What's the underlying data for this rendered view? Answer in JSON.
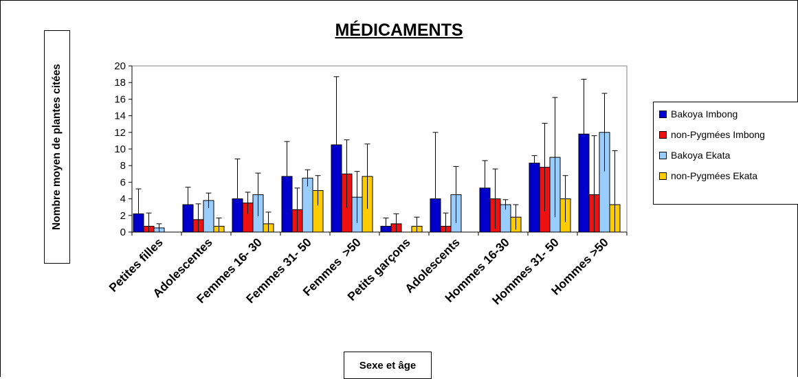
{
  "chart_data": {
    "type": "bar",
    "title": "MÉDICAMENTS",
    "xlabel": "Sexe et âge",
    "ylabel": "Nombre moyen de plantes citées",
    "ylim": [
      0,
      20
    ],
    "yticks": [
      "0",
      "2",
      "4",
      "6",
      "8",
      "10",
      "12",
      "14",
      "16",
      "18",
      "20"
    ],
    "categories": [
      "Petites filles",
      "Adolescentes",
      "Femmes 16- 30",
      "Femmes 31- 50",
      "Femmes  >50",
      "Petits garçons",
      "Adolescents",
      "Hommes 16-30",
      "Hommes 31- 50",
      "Hommes >50"
    ],
    "series": [
      {
        "name": "Bakoya Imbong",
        "color": "#0000cc",
        "values": [
          2.2,
          3.3,
          4.0,
          6.7,
          10.5,
          0.7,
          4.0,
          5.3,
          8.3,
          11.8
        ],
        "error": [
          3.0,
          2.1,
          4.8,
          4.2,
          8.2,
          1.0,
          8.0,
          3.3,
          0.9,
          6.6
        ]
      },
      {
        "name": "non-Pygmées Imbong",
        "color": "#ee1111",
        "values": [
          0.7,
          1.5,
          3.5,
          2.7,
          7.0,
          1.0,
          0.7,
          4.0,
          7.8,
          4.5
        ],
        "error": [
          1.6,
          1.9,
          1.3,
          2.6,
          4.1,
          1.2,
          1.6,
          3.6,
          5.3,
          7.1
        ]
      },
      {
        "name": "Bakoya Ekata",
        "color": "#99ccff",
        "values": [
          0.5,
          3.8,
          4.5,
          6.5,
          4.2,
          0.0,
          4.5,
          3.3,
          9.0,
          12.0
        ],
        "error": [
          0.5,
          0.9,
          2.6,
          1.0,
          3.1,
          0.0,
          3.4,
          0.6,
          7.2,
          4.7
        ]
      },
      {
        "name": "non-Pygmées Ekata",
        "color": "#ffcc00",
        "values": [
          0.0,
          0.7,
          1.0,
          5.0,
          6.7,
          0.7,
          0.0,
          1.8,
          4.0,
          3.3
        ],
        "error": [
          0.0,
          1.0,
          1.4,
          1.8,
          3.9,
          1.1,
          0.0,
          1.5,
          2.8,
          6.5
        ]
      }
    ],
    "legend_position": "right",
    "grid": false
  }
}
